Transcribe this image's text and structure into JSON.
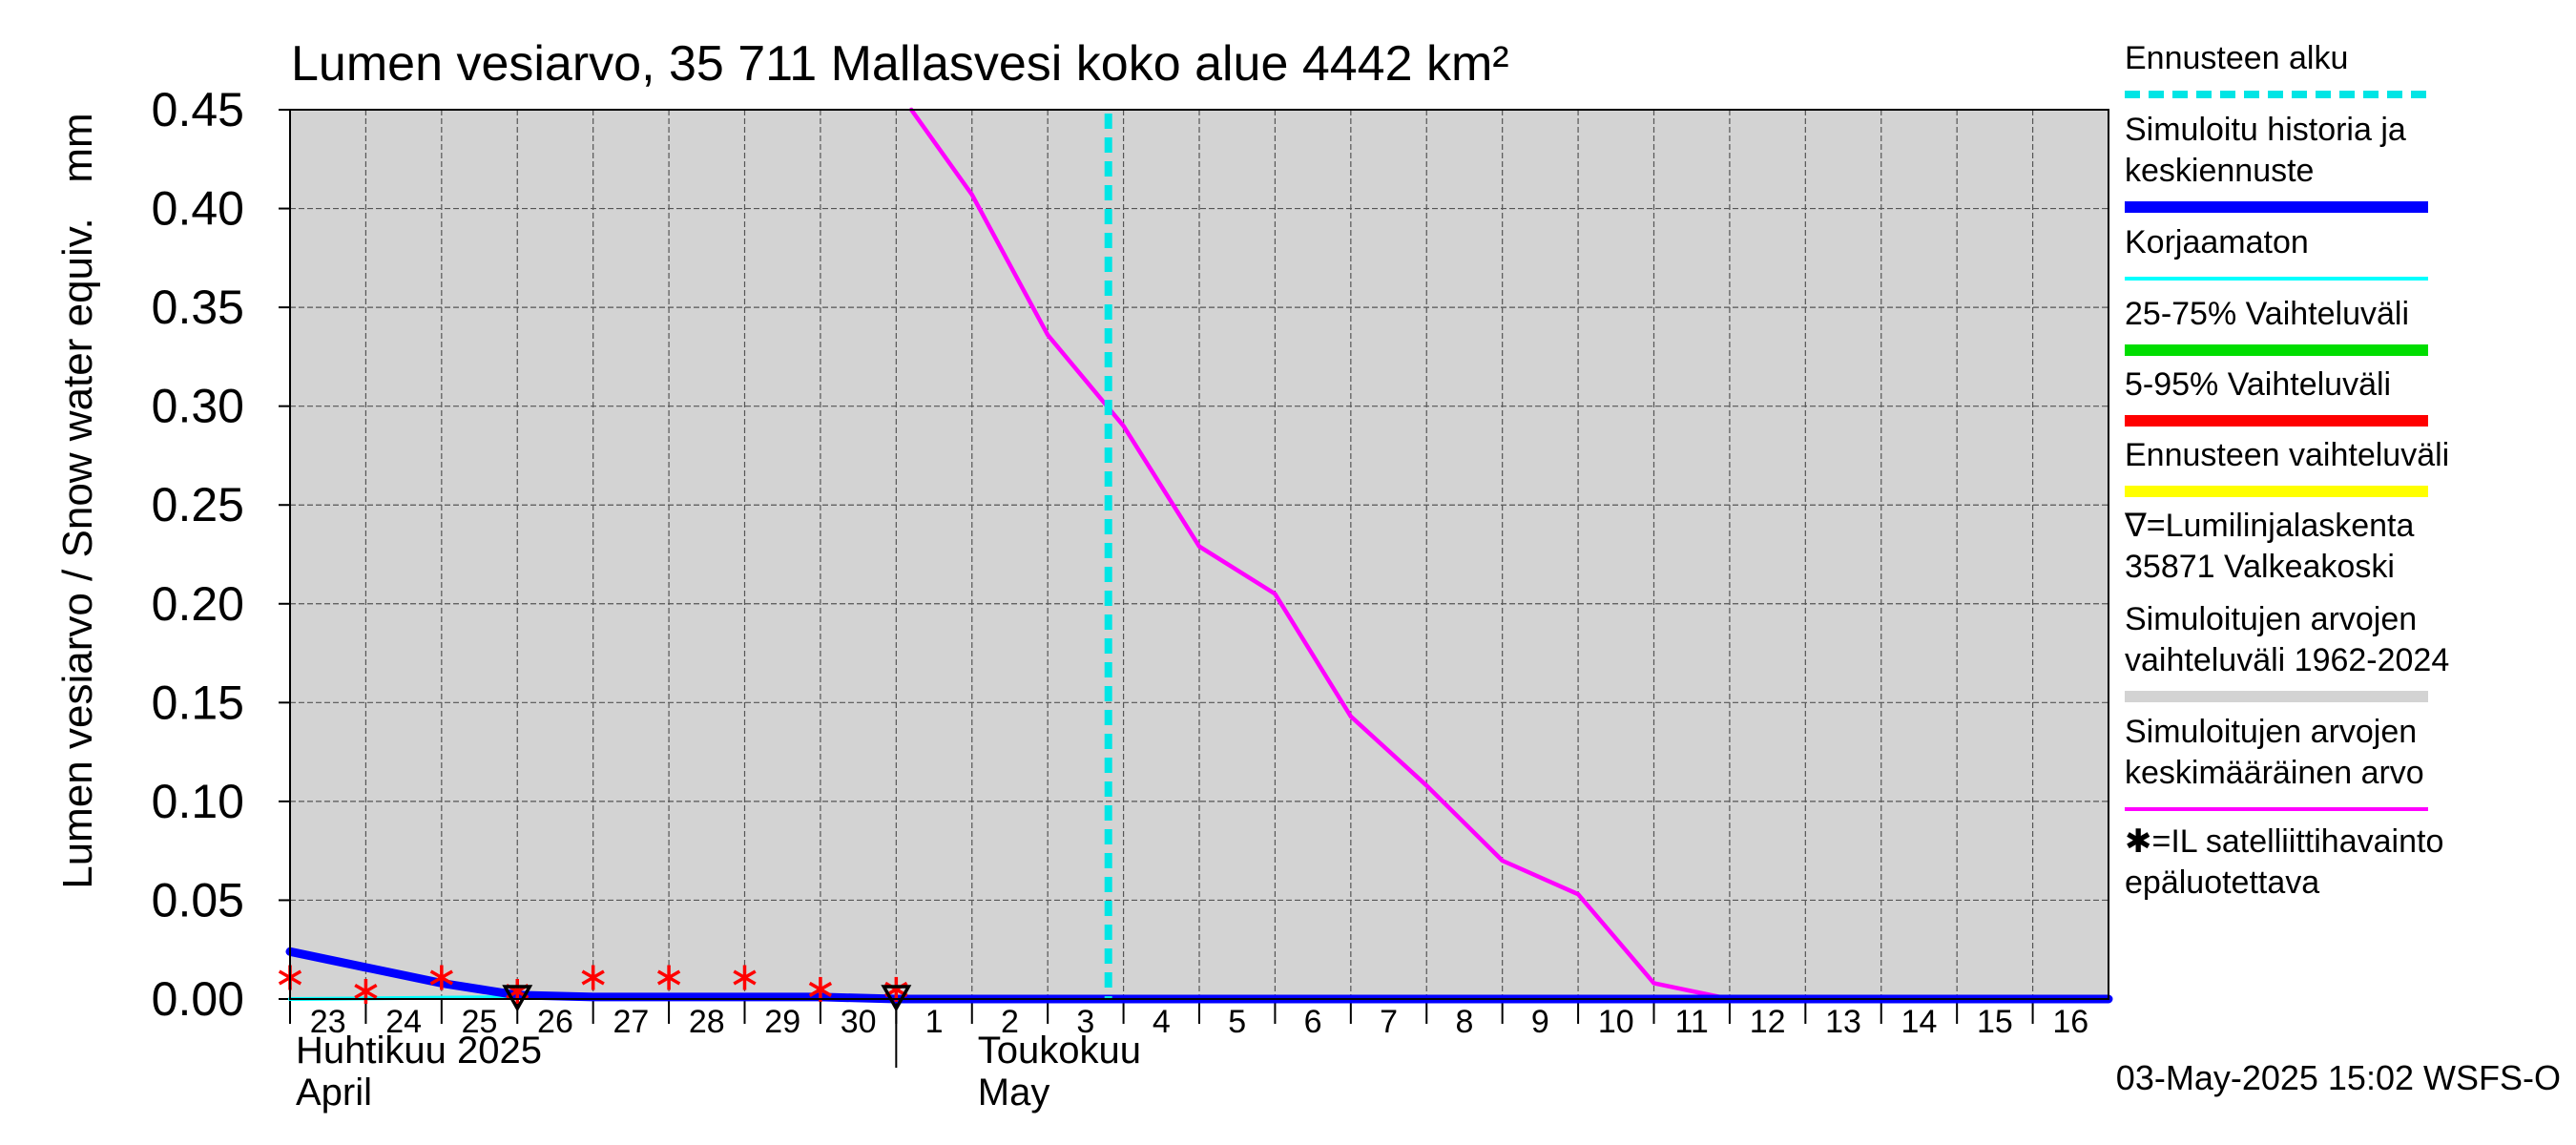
{
  "chart_data": {
    "type": "line",
    "title": "Lumen vesiarvo, 35 711 Mallasvesi koko alue 4442 km²",
    "ylabel": "Lumen vesiarvo / Snow water equiv.",
    "yunit": "mm",
    "ylim": [
      0,
      0.45
    ],
    "yticks": [
      "0.00",
      "0.05",
      "0.10",
      "0.15",
      "0.20",
      "0.25",
      "0.30",
      "0.35",
      "0.40",
      "0.45"
    ],
    "x_day_range": [
      23,
      47
    ],
    "x_ticks": [
      {
        "day": 23,
        "label": "23"
      },
      {
        "day": 24,
        "label": "24"
      },
      {
        "day": 25,
        "label": "25"
      },
      {
        "day": 26,
        "label": "26"
      },
      {
        "day": 27,
        "label": "27"
      },
      {
        "day": 28,
        "label": "28"
      },
      {
        "day": 29,
        "label": "29"
      },
      {
        "day": 30,
        "label": "30"
      },
      {
        "day": 31,
        "label": "1"
      },
      {
        "day": 32,
        "label": "2"
      },
      {
        "day": 33,
        "label": "3"
      },
      {
        "day": 34,
        "label": "4"
      },
      {
        "day": 35,
        "label": "5"
      },
      {
        "day": 36,
        "label": "6"
      },
      {
        "day": 37,
        "label": "7"
      },
      {
        "day": 38,
        "label": "8"
      },
      {
        "day": 39,
        "label": "9"
      },
      {
        "day": 40,
        "label": "10"
      },
      {
        "day": 41,
        "label": "11"
      },
      {
        "day": 42,
        "label": "12"
      },
      {
        "day": 43,
        "label": "13"
      },
      {
        "day": 44,
        "label": "14"
      },
      {
        "day": 45,
        "label": "15"
      },
      {
        "day": 46,
        "label": "16"
      }
    ],
    "month_labels": [
      {
        "day": 23,
        "line1": "Huhtikuu  2025",
        "line2": "April"
      },
      {
        "day": 32,
        "line1": "Toukokuu",
        "line2": "May"
      }
    ],
    "month_divider_day": 31,
    "forecast_start_day": 33.8,
    "series": [
      {
        "name": "Simuloitujen arvojen keskimääräinen arvo",
        "color": "#ff00ff",
        "x": [
          31.2,
          32,
          33,
          34,
          35,
          36,
          37,
          38,
          39,
          40,
          41,
          42,
          43,
          44,
          45,
          46,
          47
        ],
        "y": [
          0.45,
          0.407,
          0.336,
          0.29,
          0.229,
          0.205,
          0.143,
          0.108,
          0.07,
          0.053,
          0.008,
          0.0,
          0.0,
          0.0,
          0.0,
          0.0,
          0.0
        ]
      },
      {
        "name": "Korjaamaton",
        "color": "#00ffff",
        "x": [
          23,
          26,
          27,
          30,
          31,
          47
        ],
        "y": [
          0.0,
          0.001,
          0.001,
          0.001,
          0.0,
          0.0
        ]
      },
      {
        "name": "Simuloitu historia ja keskiennuste",
        "color": "#0000ff",
        "x": [
          23,
          24,
          25,
          26,
          27,
          30,
          31,
          47
        ],
        "y": [
          0.024,
          0.016,
          0.008,
          0.002,
          0.001,
          0.001,
          0.0,
          0.0
        ]
      }
    ],
    "satellite_points": {
      "name": "IL satelliittihavainto epäluotettava",
      "x": [
        23,
        24,
        25,
        26,
        27,
        28,
        29,
        30,
        31
      ],
      "y": [
        0.007,
        0.0,
        0.007,
        0.0,
        0.007,
        0.007,
        0.007,
        0.001,
        0.001
      ]
    },
    "snow_course_points": {
      "name": "Lumilinjalaskenta 35871 Valkeakoski",
      "x": [
        26,
        31
      ],
      "y": [
        0.0,
        0.0
      ]
    },
    "legend": [
      {
        "text": [
          "Ennusteen alku"
        ],
        "color": "#00e5e5",
        "style": "dashed"
      },
      {
        "text": [
          "Simuloitu historia ja",
          "keskiennuste"
        ],
        "color": "#0000ff",
        "style": "thick"
      },
      {
        "text": [
          "Korjaamaton"
        ],
        "color": "#00ffff",
        "style": "solid"
      },
      {
        "text": [
          "25-75% Vaihteluväli"
        ],
        "color": "#00dd00",
        "style": "thick"
      },
      {
        "text": [
          "5-95% Vaihteluväli"
        ],
        "color": "#ff0000",
        "style": "thick"
      },
      {
        "text": [
          "Ennusteen vaihteluväli"
        ],
        "color": "#ffff00",
        "style": "thick"
      },
      {
        "text": [
          "∇=Lumilinjalaskenta",
          "35871 Valkeakoski"
        ],
        "color": "",
        "style": "none"
      },
      {
        "text": [
          "Simuloitujen arvojen",
          "vaihteluväli 1962-2024"
        ],
        "color": "#d3d3d3",
        "style": "thick"
      },
      {
        "text": [
          "Simuloitujen arvojen",
          "keskimääräinen arvo"
        ],
        "color": "#ff00ff",
        "style": "solid"
      },
      {
        "text": [
          "✱=IL satelliittihavainto",
          "epäluotettava"
        ],
        "color": "",
        "style": "none"
      }
    ],
    "footer": "03-May-2025 15:02 WSFS-O"
  }
}
